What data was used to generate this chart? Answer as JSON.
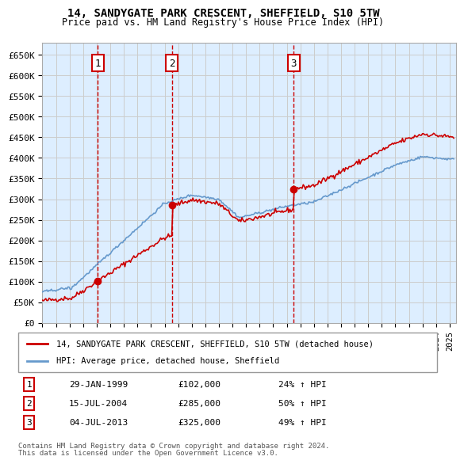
{
  "title1": "14, SANDYGATE PARK CRESCENT, SHEFFIELD, S10 5TW",
  "title2": "Price paid vs. HM Land Registry's House Price Index (HPI)",
  "ylabel_ticks": [
    "£0",
    "£50K",
    "£100K",
    "£150K",
    "£200K",
    "£250K",
    "£300K",
    "£350K",
    "£400K",
    "£450K",
    "£500K",
    "£550K",
    "£600K",
    "£650K"
  ],
  "ytick_values": [
    0,
    50000,
    100000,
    150000,
    200000,
    250000,
    300000,
    350000,
    400000,
    450000,
    500000,
    550000,
    600000,
    650000
  ],
  "xlim_start": 1995.0,
  "xlim_end": 2025.5,
  "ylim_min": 0,
  "ylim_max": 680000,
  "transactions": [
    {
      "num": 1,
      "date_num": 1999.08,
      "price": 102000,
      "date_str": "29-JAN-1999",
      "price_str": "£102,000",
      "hpi_str": "24% ↑ HPI"
    },
    {
      "num": 2,
      "date_num": 2004.54,
      "price": 285000,
      "date_str": "15-JUL-2004",
      "price_str": "£285,000",
      "hpi_str": "50% ↑ HPI"
    },
    {
      "num": 3,
      "date_num": 2013.5,
      "price": 325000,
      "date_str": "04-JUL-2013",
      "price_str": "£325,000",
      "hpi_str": "49% ↑ HPI"
    }
  ],
  "legend1_label": "14, SANDYGATE PARK CRESCENT, SHEFFIELD, S10 5TW (detached house)",
  "legend2_label": "HPI: Average price, detached house, Sheffield",
  "footer1": "Contains HM Land Registry data © Crown copyright and database right 2024.",
  "footer2": "This data is licensed under the Open Government Licence v3.0.",
  "red_line_color": "#cc0000",
  "blue_line_color": "#6699cc",
  "grid_color": "#cccccc",
  "background_color": "#ddeeff",
  "plot_bg": "#ffffff",
  "dashed_line_color": "#cc0000"
}
